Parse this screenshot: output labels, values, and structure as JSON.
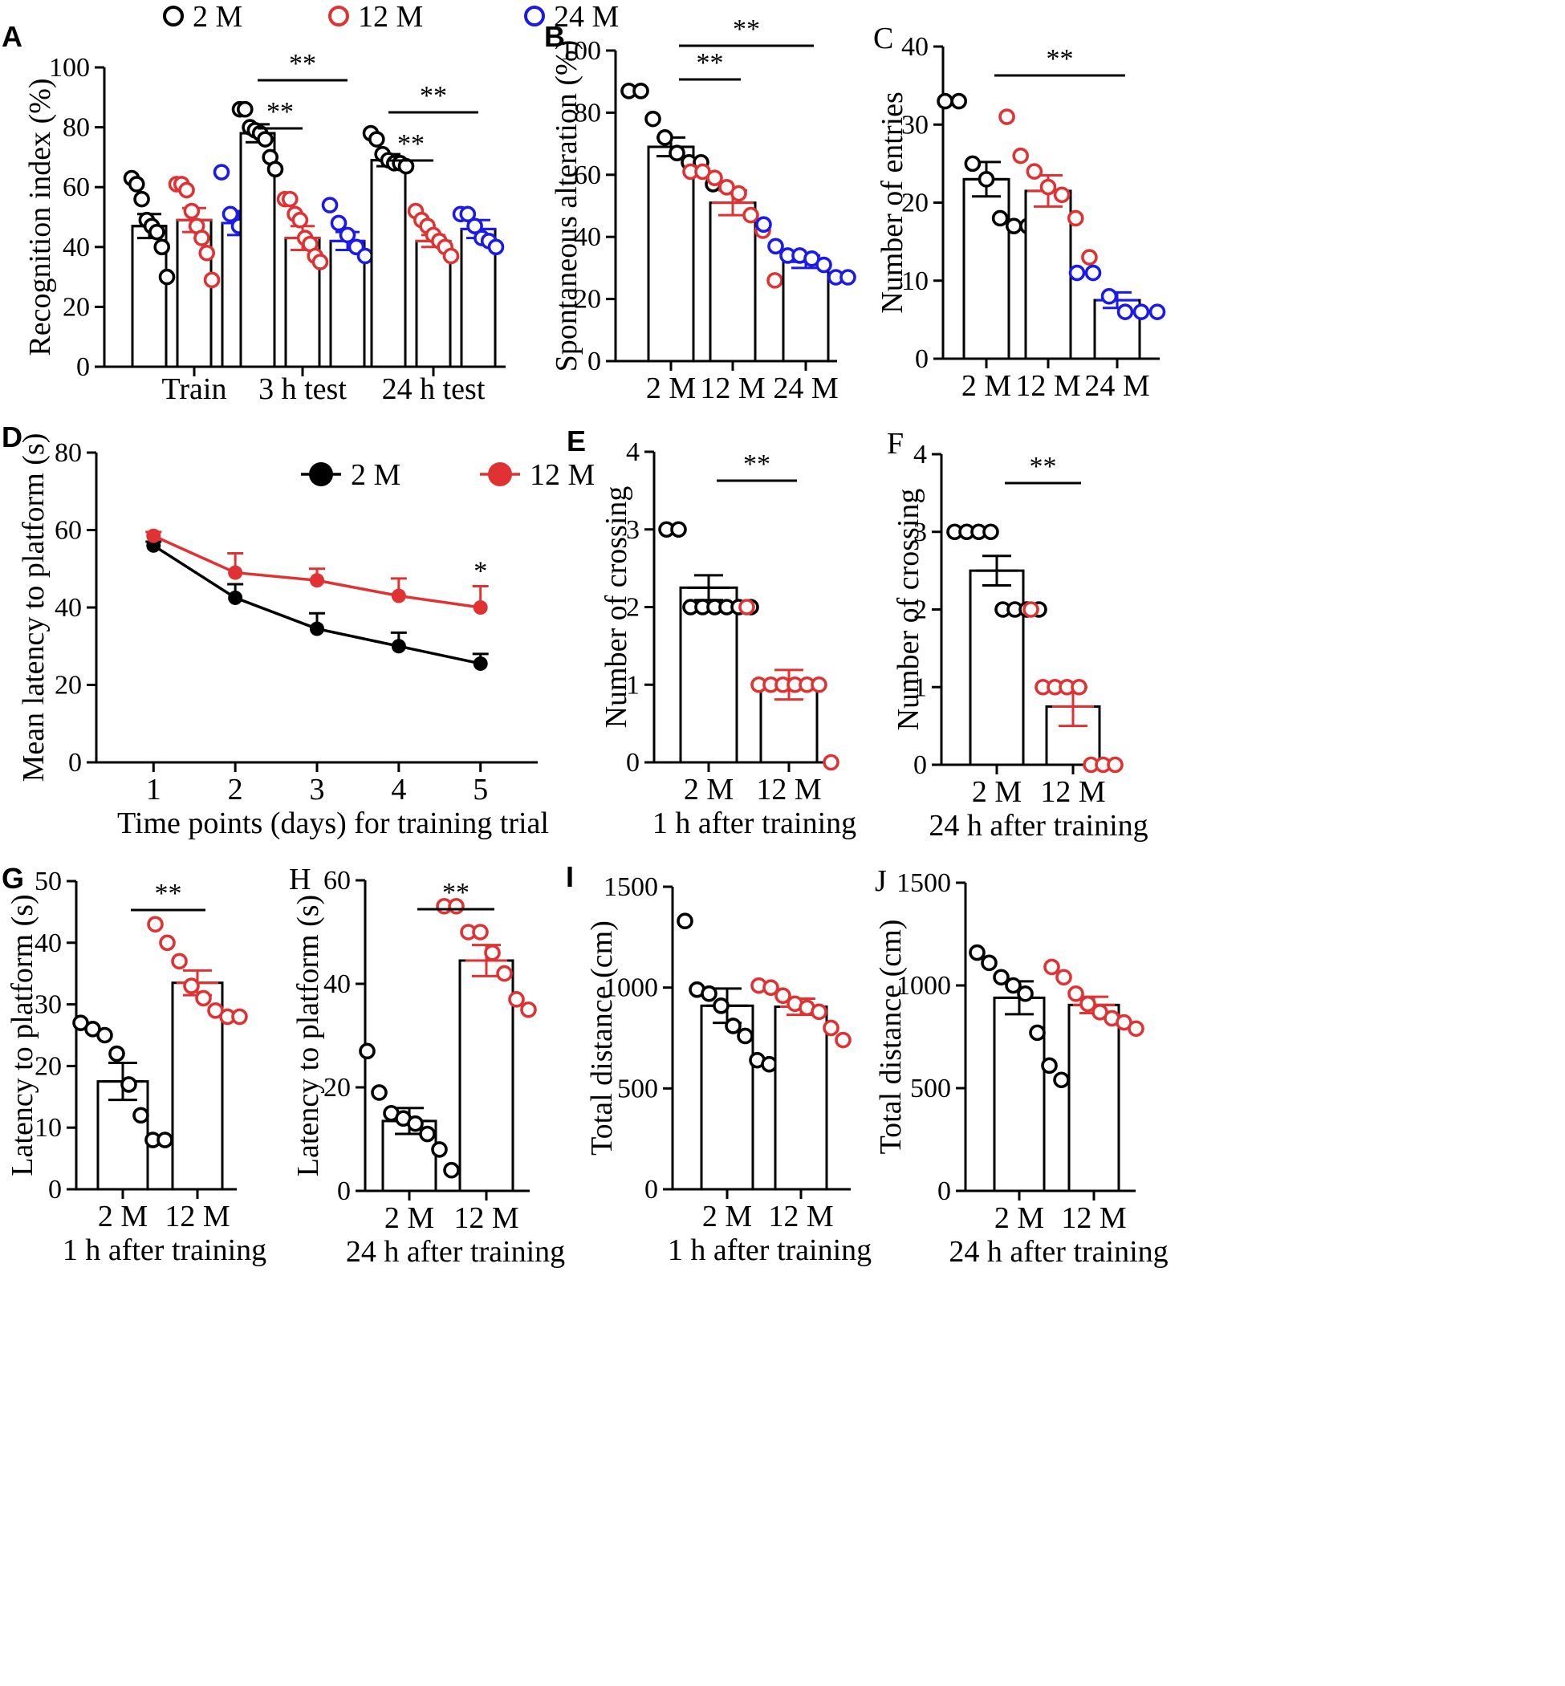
{
  "legend": {
    "top": [
      {
        "label": "2 M",
        "color": "#000000"
      },
      {
        "label": "12 M",
        "color": "#e03232"
      },
      {
        "label": "24 M",
        "color": "#1a1aeb"
      }
    ]
  },
  "colors": {
    "m2": "#000000",
    "m12": "#e03232",
    "m24": "#1a1aeb"
  },
  "chart_data": [
    {
      "id": "A",
      "letter": "A",
      "type": "bar",
      "ylabel": "Recognition index (%)",
      "xlabel": "",
      "ylim": [
        0,
        100
      ],
      "yticks": [
        0,
        20,
        40,
        60,
        80,
        100
      ],
      "categories": [
        "Train",
        "3 h test",
        "24 h test"
      ],
      "series": [
        {
          "name": "2 M",
          "values": [
            47,
            78,
            69
          ],
          "sem": [
            4,
            3,
            2
          ],
          "points": [
            [
              63,
              61,
              56,
              49,
              47,
              45,
              40,
              30
            ],
            [
              86,
              86,
              80,
              79,
              78,
              76,
              70,
              66
            ],
            [
              78,
              76,
              71,
              69,
              68,
              68,
              67
            ]
          ]
        },
        {
          "name": "12 M",
          "values": [
            49,
            43,
            42
          ],
          "sem": [
            4,
            4,
            2
          ],
          "points": [
            [
              61,
              61,
              59,
              52,
              47,
              43,
              38,
              29
            ],
            [
              56,
              56,
              51,
              49,
              43,
              41,
              37,
              35
            ],
            [
              52,
              49,
              47,
              44,
              42,
              40,
              37
            ]
          ]
        },
        {
          "name": "24 M",
          "values": [
            48,
            42,
            46
          ],
          "sem": [
            4,
            3,
            3
          ],
          "points": [
            [
              65,
              51,
              47,
              45,
              43
            ],
            [
              54,
              48,
              44,
              40,
              37
            ],
            [
              51,
              51,
              47,
              43,
              42,
              40
            ]
          ]
        }
      ],
      "significance": [
        {
          "group": 1,
          "from": 0,
          "to": 1,
          "label": "**"
        },
        {
          "group": 1,
          "from": 0,
          "to": 2,
          "label": "**"
        },
        {
          "group": 2,
          "from": 0,
          "to": 1,
          "label": "**"
        },
        {
          "group": 2,
          "from": 0,
          "to": 2,
          "label": "**"
        }
      ]
    },
    {
      "id": "B",
      "letter": "B",
      "type": "bar",
      "ylabel": "Spontaneous alteration (%)",
      "xlabel": "",
      "ylim": [
        0,
        100
      ],
      "yticks": [
        0,
        20,
        40,
        60,
        80,
        100
      ],
      "categories": [
        "2 M",
        "12 M",
        "24 M"
      ],
      "values": [
        69,
        51,
        32
      ],
      "sem": [
        3,
        4,
        2
      ],
      "points": [
        [
          87,
          87,
          78,
          72,
          67,
          64,
          64,
          57
        ],
        [
          61,
          61,
          59,
          56,
          54,
          47,
          42,
          26
        ],
        [
          44,
          37,
          34,
          34,
          33,
          31,
          27,
          27
        ]
      ],
      "significance": [
        {
          "from": 0,
          "to": 1,
          "label": "**"
        },
        {
          "from": 0,
          "to": 2,
          "label": "**"
        }
      ]
    },
    {
      "id": "C",
      "letter": "C",
      "type": "bar",
      "ylabel": "Number of entries",
      "xlabel": "",
      "ylim": [
        0,
        40
      ],
      "yticks": [
        0,
        10,
        20,
        30,
        40
      ],
      "categories": [
        "2 M",
        "12 M",
        "24 M"
      ],
      "values": [
        23,
        21.5,
        7.5
      ],
      "sem": [
        2.2,
        2,
        1
      ],
      "points": [
        [
          33,
          33,
          25,
          23,
          18,
          17,
          17
        ],
        [
          31,
          26,
          24,
          22,
          21,
          18,
          13
        ],
        [
          11,
          11,
          8,
          6,
          6,
          6
        ]
      ],
      "significance": [
        {
          "from": 0,
          "to": 2,
          "label": "**"
        }
      ]
    },
    {
      "id": "D",
      "letter": "D",
      "type": "line",
      "ylabel": "Mean latency to platform (s)",
      "xlabel": "Time points (days) for training trial",
      "ylim": [
        0,
        80
      ],
      "yticks": [
        0,
        20,
        40,
        60,
        80
      ],
      "x": [
        1,
        2,
        3,
        4,
        5
      ],
      "xlim": [
        0.3,
        5.7
      ],
      "series": [
        {
          "name": "2 M",
          "color": "#000000",
          "values": [
            56,
            42.5,
            34.5,
            30,
            25.5
          ],
          "sem": [
            1,
            3.5,
            4,
            3.5,
            2.5
          ]
        },
        {
          "name": "12 M",
          "color": "#e03232",
          "values": [
            58.5,
            49,
            47,
            43,
            40
          ],
          "sem": [
            1,
            5,
            3,
            4.5,
            5.5
          ]
        }
      ],
      "annotations": [
        {
          "x": 5,
          "label": "*"
        }
      ]
    },
    {
      "id": "E",
      "letter": "E",
      "type": "bar",
      "ylabel": "Number of  crossing",
      "xlabel": "1 h after training",
      "ylim": [
        0,
        4
      ],
      "yticks": [
        0,
        1,
        2,
        3,
        4
      ],
      "categories": [
        "2 M",
        "12 M"
      ],
      "values": [
        2.25,
        1
      ],
      "sem": [
        0.16,
        0.19
      ],
      "points": [
        [
          3,
          3,
          2,
          2,
          2,
          2,
          2,
          2
        ],
        [
          2,
          1,
          1,
          1,
          1,
          1,
          1,
          0
        ]
      ],
      "significance": [
        {
          "from": 0,
          "to": 1,
          "label": "**"
        }
      ]
    },
    {
      "id": "F",
      "letter": "F",
      "type": "bar",
      "ylabel": "Number of crossing",
      "xlabel": "24 h after training",
      "ylim": [
        0,
        4
      ],
      "yticks": [
        0,
        1,
        2,
        3,
        4
      ],
      "categories": [
        "2 M",
        "12 M"
      ],
      "values": [
        2.5,
        0.75
      ],
      "sem": [
        0.19,
        0.25
      ],
      "points": [
        [
          3,
          3,
          3,
          3,
          2,
          2,
          2,
          2
        ],
        [
          2,
          1,
          1,
          1,
          1,
          0,
          0,
          0
        ]
      ],
      "significance": [
        {
          "from": 0,
          "to": 1,
          "label": "**"
        }
      ]
    },
    {
      "id": "G",
      "letter": "G",
      "type": "bar",
      "ylabel": "Latency to platform (s)",
      "xlabel": "1 h after training",
      "ylim": [
        0,
        50
      ],
      "yticks": [
        0,
        10,
        20,
        30,
        40,
        50
      ],
      "categories": [
        "2 M",
        "12 M"
      ],
      "values": [
        17.5,
        33.5
      ],
      "sem": [
        3,
        2
      ],
      "points": [
        [
          27,
          26,
          25,
          22,
          17,
          12,
          8,
          8
        ],
        [
          43,
          40,
          37,
          33,
          31,
          29,
          28,
          28
        ]
      ],
      "significance": [
        {
          "from": 0,
          "to": 1,
          "label": "**"
        }
      ]
    },
    {
      "id": "H",
      "letter": "H",
      "type": "bar",
      "ylabel": "Latency to platform (s)",
      "xlabel": "24 h after training",
      "ylim": [
        0,
        60
      ],
      "yticks": [
        0,
        20,
        40,
        60
      ],
      "categories": [
        "2 M",
        "12 M"
      ],
      "values": [
        13.5,
        44.5
      ],
      "sem": [
        2.5,
        3
      ],
      "points": [
        [
          27,
          19,
          15,
          14,
          13,
          11,
          8,
          4
        ],
        [
          55,
          55,
          50,
          50,
          46,
          42,
          37,
          35
        ]
      ],
      "significance": [
        {
          "from": 0,
          "to": 1,
          "label": "**"
        }
      ]
    },
    {
      "id": "I",
      "letter": "I",
      "type": "bar",
      "ylabel": "Total distance (cm)",
      "xlabel": "1 h after training",
      "ylim": [
        0,
        1500
      ],
      "yticks": [
        0,
        500,
        1000,
        1500
      ],
      "categories": [
        "2 M",
        "12 M"
      ],
      "values": [
        910,
        905
      ],
      "sem": [
        85,
        40
      ],
      "points": [
        [
          1330,
          990,
          970,
          910,
          810,
          760,
          640,
          620
        ],
        [
          1010,
          1000,
          960,
          920,
          900,
          880,
          800,
          740
        ]
      ],
      "significance": []
    },
    {
      "id": "J",
      "letter": "J",
      "type": "bar",
      "ylabel": "Total distance (cm)",
      "xlabel": "24 h after training",
      "ylim": [
        0,
        1500
      ],
      "yticks": [
        0,
        500,
        1000,
        1500
      ],
      "categories": [
        "2 M",
        "12 M"
      ],
      "values": [
        940,
        905
      ],
      "sem": [
        80,
        40
      ],
      "points": [
        [
          1160,
          1110,
          1040,
          1000,
          960,
          770,
          610,
          540
        ],
        [
          1090,
          1040,
          960,
          910,
          870,
          840,
          820,
          790
        ]
      ],
      "significance": []
    }
  ]
}
